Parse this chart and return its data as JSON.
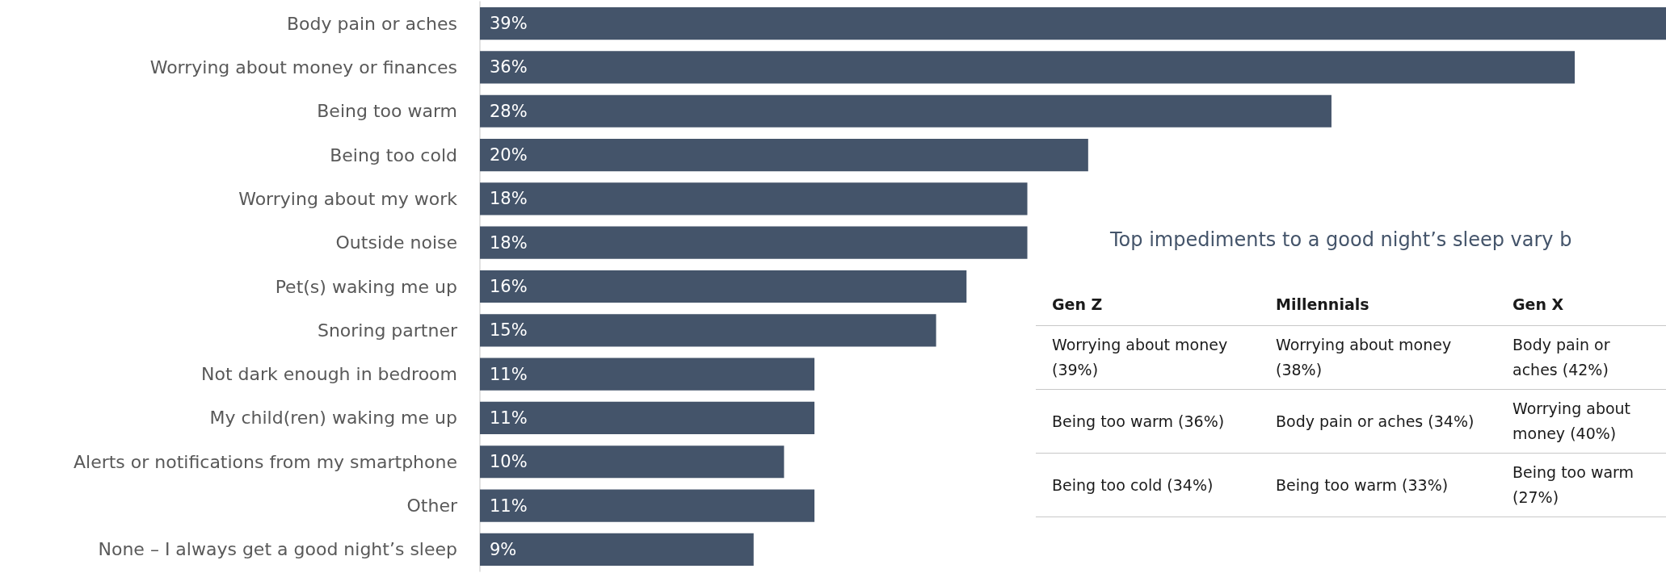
{
  "chart_data": [
    {
      "type": "bar",
      "orientation": "horizontal",
      "categories": [
        "Body pain or aches",
        "Worrying about money or finances",
        "Being too warm",
        "Being too cold",
        "Worrying about my work",
        "Outside noise",
        "Pet(s) waking me up",
        "Snoring partner",
        "Not dark enough in bedroom",
        "My child(ren) waking me up",
        "Alerts or notifications from my smartphone",
        "Other",
        "None – I always get a good night’s sleep"
      ],
      "values": [
        39,
        36,
        28,
        20,
        18,
        18,
        16,
        15,
        11,
        11,
        10,
        11,
        9
      ],
      "value_labels": [
        "39%",
        "36%",
        "28%",
        "20%",
        "18%",
        "18%",
        "16%",
        "15%",
        "11%",
        "11%",
        "10%",
        "11%",
        "9%"
      ],
      "color": "#44546a",
      "tick_labels": "y"
    },
    {
      "type": "other",
      "title": "Top impediments to a good night’s sleep vary b",
      "categories": [
        "Gen Z",
        "Millennials",
        "Gen X"
      ],
      "annotations": [
        "Worrying about money (39%)",
        "Worrying about money (38%)",
        "Body pain or aches (42%)",
        "Being too warm (36%)",
        "Body pain or aches (34%)",
        "Worrying about money (40%)",
        "Being too cold (34%)",
        "Being too warm (33%)",
        "Being too warm (27%)"
      ]
    }
  ]
}
